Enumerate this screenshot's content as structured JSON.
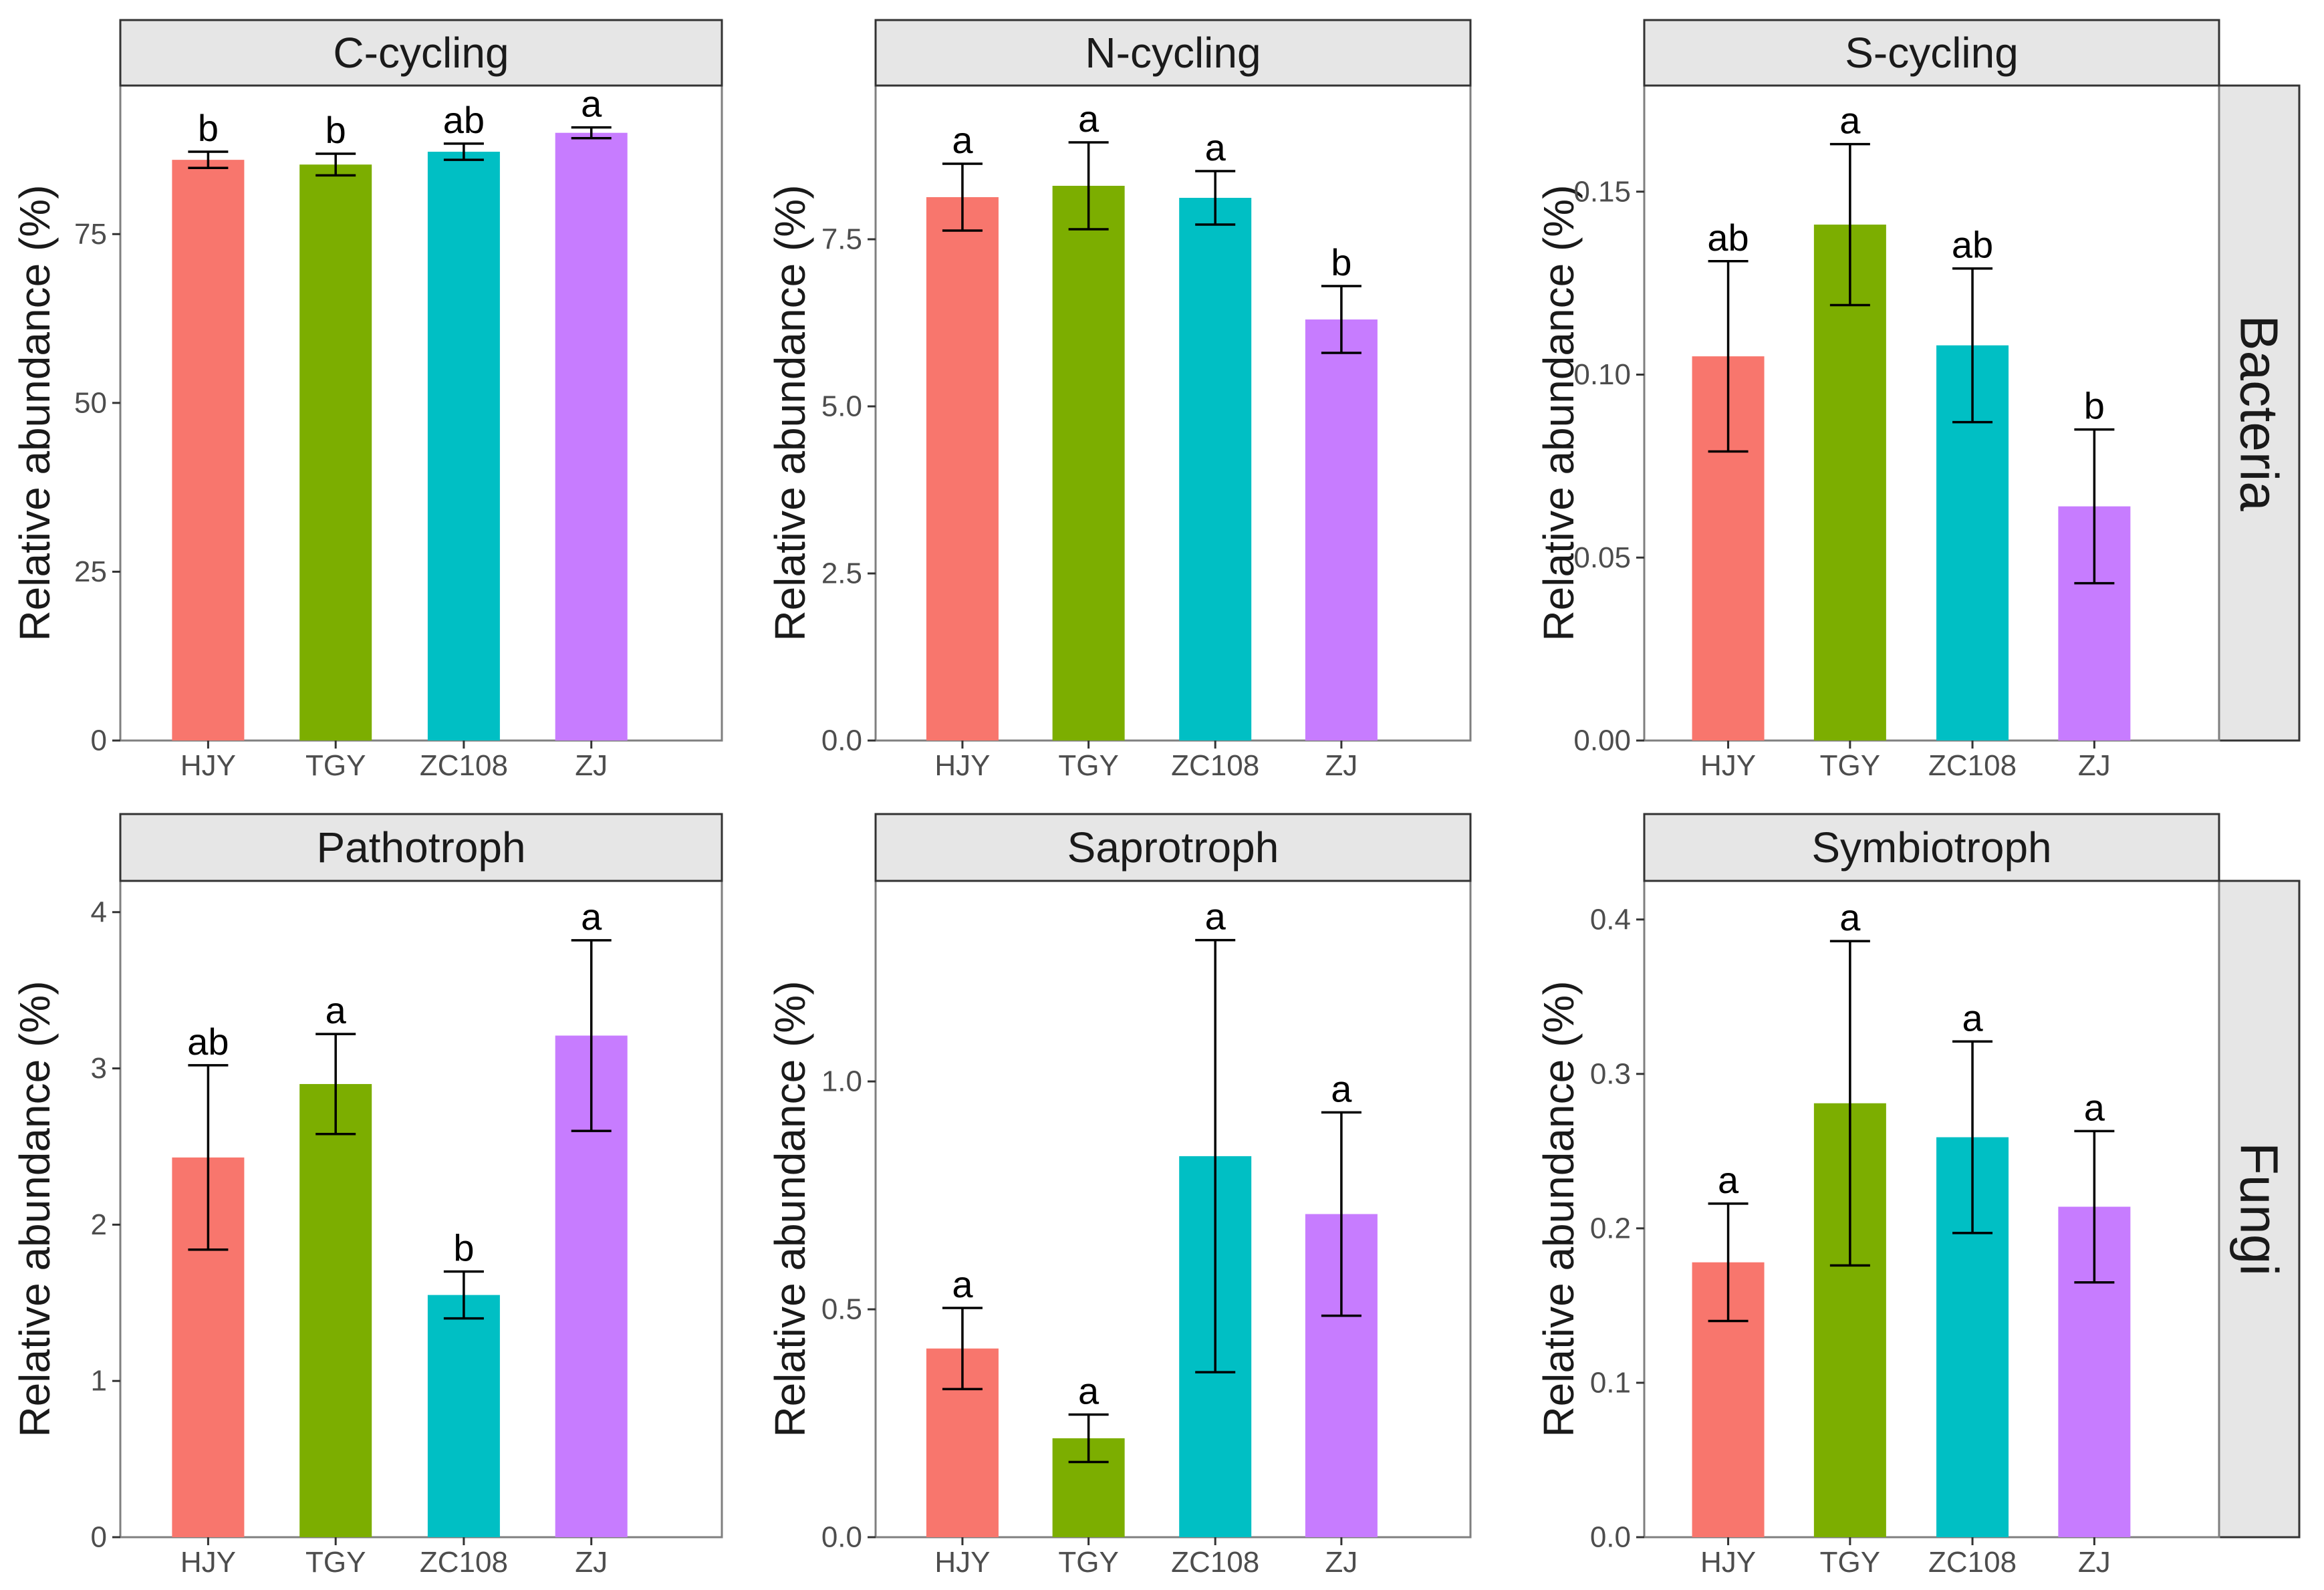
{
  "chart_data": {
    "type": "bar",
    "ylabel": "Relative abundance (%)",
    "categories": [
      "HJY",
      "TGY",
      "ZC108",
      "ZJ"
    ],
    "colors": {
      "HJY": "#f8766d",
      "TGY": "#7cae00",
      "ZC108": "#00bfc4",
      "ZJ": "#c77cff"
    },
    "rows": [
      {
        "label": "Bacteria"
      },
      {
        "label": "Fungi"
      }
    ],
    "panels": [
      {
        "title": "C-cycling",
        "row": 0,
        "ylim": [
          0,
          97
        ],
        "yticks": [
          0,
          25,
          50,
          75
        ],
        "ytick_labels": [
          "0",
          "25",
          "50",
          "75"
        ],
        "values": [
          86.0,
          85.3,
          87.2,
          90.0
        ],
        "errors": [
          1.2,
          1.6,
          1.2,
          0.8
        ],
        "letters": [
          "b",
          "b",
          "ab",
          "a"
        ]
      },
      {
        "title": "N-cycling",
        "row": 0,
        "ylim": [
          0,
          9.8
        ],
        "yticks": [
          0,
          2.5,
          5,
          7.5
        ],
        "ytick_labels": [
          "0.0",
          "2.5",
          "5.0",
          "7.5"
        ],
        "values": [
          8.13,
          8.3,
          8.12,
          6.3
        ],
        "errors": [
          0.5,
          0.65,
          0.4,
          0.5
        ],
        "letters": [
          "a",
          "a",
          "a",
          "b"
        ]
      },
      {
        "title": "S-cycling",
        "row": 0,
        "ylim": [
          0,
          0.179
        ],
        "yticks": [
          0,
          0.05,
          0.1,
          0.15
        ],
        "ytick_labels": [
          "0.00",
          "0.05",
          "0.10",
          "0.15"
        ],
        "values": [
          0.105,
          0.141,
          0.108,
          0.064
        ],
        "errors": [
          0.026,
          0.022,
          0.021,
          0.021
        ],
        "letters": [
          "ab",
          "a",
          "ab",
          "b"
        ]
      },
      {
        "title": "Pathotroph",
        "row": 1,
        "ylim": [
          0,
          4.2
        ],
        "yticks": [
          0,
          1,
          2,
          3,
          4
        ],
        "ytick_labels": [
          "0",
          "1",
          "2",
          "3",
          "4"
        ],
        "values": [
          2.43,
          2.9,
          1.55,
          3.21
        ],
        "errors": [
          0.59,
          0.32,
          0.15,
          0.61
        ],
        "letters": [
          "ab",
          "a",
          "b",
          "a"
        ]
      },
      {
        "title": "Saprotroph",
        "row": 1,
        "ylim": [
          0,
          1.44
        ],
        "yticks": [
          0,
          0.5,
          1.0
        ],
        "ytick_labels": [
          "0.0",
          "0.5",
          "1.0"
        ],
        "values": [
          0.414,
          0.217,
          0.836,
          0.709
        ],
        "errors": [
          0.089,
          0.052,
          0.474,
          0.223
        ],
        "letters": [
          "a",
          "a",
          "a",
          "a"
        ]
      },
      {
        "title": "Symbiotroph",
        "row": 1,
        "ylim": [
          0,
          0.425
        ],
        "yticks": [
          0,
          0.1,
          0.2,
          0.3,
          0.4
        ],
        "ytick_labels": [
          "0.0",
          "0.1",
          "0.2",
          "0.3",
          "0.4"
        ],
        "values": [
          0.178,
          0.281,
          0.259,
          0.214
        ],
        "errors": [
          0.038,
          0.105,
          0.062,
          0.049
        ],
        "letters": [
          "a",
          "a",
          "a",
          "a"
        ]
      }
    ]
  }
}
